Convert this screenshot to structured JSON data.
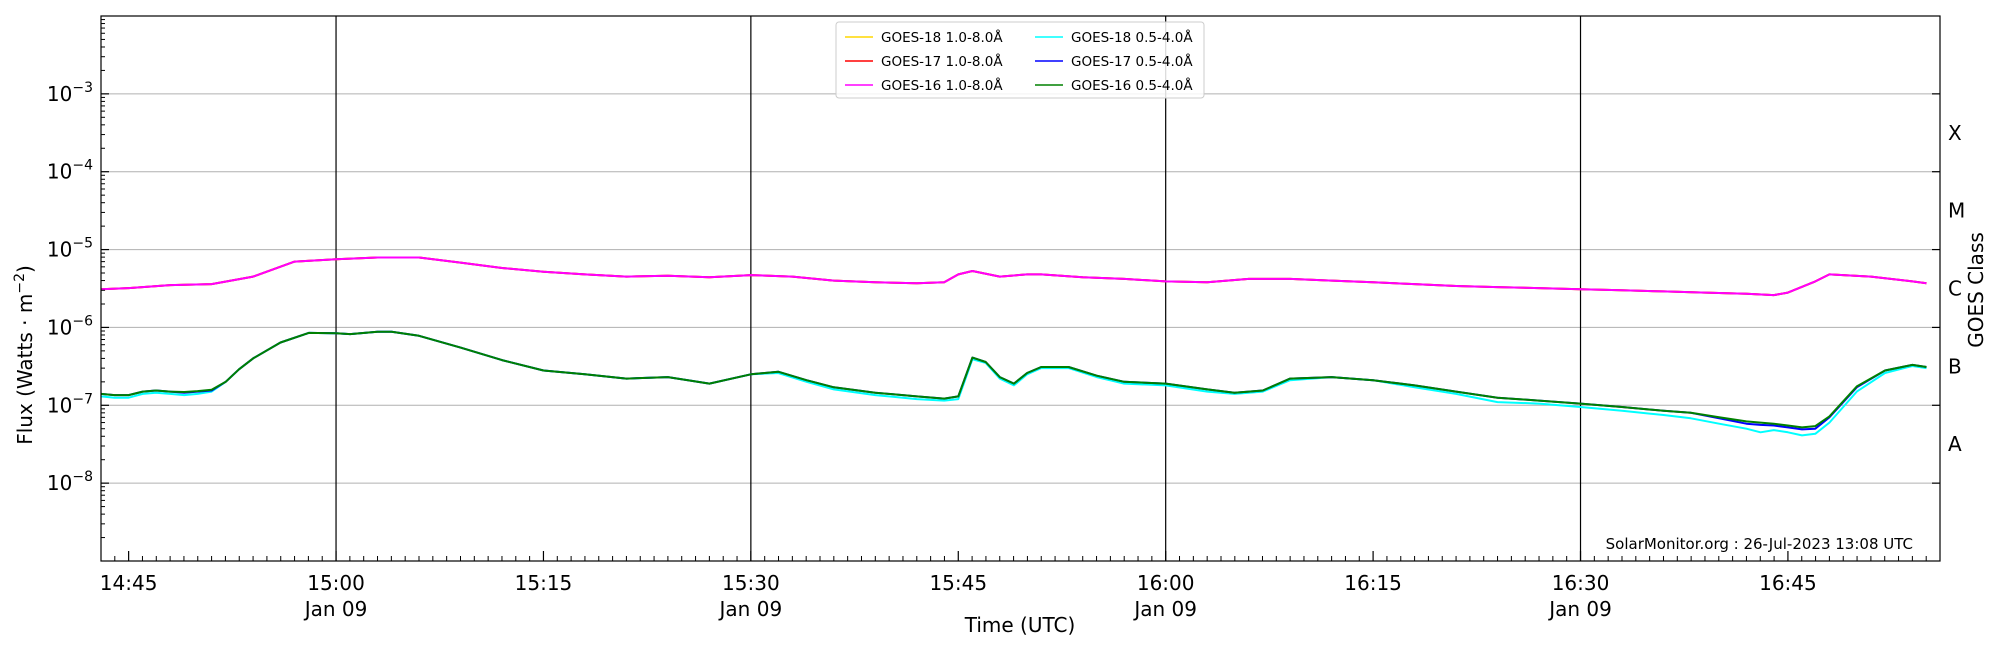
{
  "chart_data": {
    "type": "line",
    "xlabel": "Time (UTC)",
    "ylabel": "Flux (Watts · m",
    "ylabel_exp": "−2",
    "ylabel_close": ")",
    "y2label": "GOES Class",
    "credit": "SolarMonitor.org : 26-Jul-2023 13:08 UTC",
    "yscale": "log",
    "ylim": [
      1e-09,
      0.01
    ],
    "xlim": [
      14.7167,
      16.9333
    ],
    "grid": "horizontal",
    "legend_position": "top-center",
    "y_ticks": [
      {
        "value": 1e-08,
        "base": "10",
        "exp": "−8"
      },
      {
        "value": 1e-07,
        "base": "10",
        "exp": "−7"
      },
      {
        "value": 1e-06,
        "base": "10",
        "exp": "−6"
      },
      {
        "value": 1e-05,
        "base": "10",
        "exp": "−5"
      },
      {
        "value": 0.0001,
        "base": "10",
        "exp": "−4"
      },
      {
        "value": 0.001,
        "base": "10",
        "exp": "−3"
      }
    ],
    "x_ticks": [
      {
        "value": 14.75,
        "label": "14:45",
        "sub": ""
      },
      {
        "value": 15.0,
        "label": "15:00",
        "sub": "Jan 09"
      },
      {
        "value": 15.25,
        "label": "15:15",
        "sub": ""
      },
      {
        "value": 15.5,
        "label": "15:30",
        "sub": "Jan 09"
      },
      {
        "value": 15.75,
        "label": "15:45",
        "sub": ""
      },
      {
        "value": 16.0,
        "label": "16:00",
        "sub": "Jan 09"
      },
      {
        "value": 16.25,
        "label": "16:15",
        "sub": ""
      },
      {
        "value": 16.5,
        "label": "16:30",
        "sub": "Jan 09"
      },
      {
        "value": 16.75,
        "label": "16:45",
        "sub": ""
      }
    ],
    "vlines": [
      15.0,
      15.5,
      16.0,
      16.5
    ],
    "goes_classes": [
      {
        "label": "A",
        "value": 3.16e-08
      },
      {
        "label": "B",
        "value": 3.16e-07
      },
      {
        "label": "C",
        "value": 3.16e-06
      },
      {
        "label": "M",
        "value": 3.16e-05
      },
      {
        "label": "X",
        "value": 0.000316
      }
    ],
    "series": [
      {
        "name": "GOES-18 1.0-8.0Å",
        "color": "#ffd700",
        "x": [
          14.7167,
          14.75,
          14.8,
          14.85,
          14.9,
          14.95,
          15.0,
          15.05,
          15.1,
          15.15,
          15.2,
          15.25,
          15.3,
          15.35,
          15.4,
          15.45,
          15.5,
          15.55,
          15.6,
          15.65,
          15.7,
          15.733,
          15.75,
          15.767,
          15.8,
          15.833,
          15.85,
          15.9,
          15.95,
          16.0,
          16.05,
          16.1,
          16.15,
          16.2,
          16.25,
          16.3,
          16.35,
          16.4,
          16.45,
          16.5,
          16.55,
          16.6,
          16.65,
          16.7,
          16.733,
          16.75,
          16.783,
          16.8,
          16.85,
          16.9,
          16.917
        ],
        "y": [
          3.1e-06,
          3.2e-06,
          3.5e-06,
          3.6e-06,
          4.5e-06,
          7e-06,
          7.5e-06,
          7.9e-06,
          7.9e-06,
          6.8e-06,
          5.8e-06,
          5.2e-06,
          4.8e-06,
          4.5e-06,
          4.6e-06,
          4.4e-06,
          4.7e-06,
          4.5e-06,
          4e-06,
          3.8e-06,
          3.7e-06,
          3.8e-06,
          4.8e-06,
          5.3e-06,
          4.5e-06,
          4.8e-06,
          4.8e-06,
          4.4e-06,
          4.2e-06,
          3.9e-06,
          3.8e-06,
          4.2e-06,
          4.2e-06,
          4e-06,
          3.8e-06,
          3.6e-06,
          3.4e-06,
          3.3e-06,
          3.2e-06,
          3.1e-06,
          3e-06,
          2.9e-06,
          2.8e-06,
          2.7e-06,
          2.6e-06,
          2.8e-06,
          3.9e-06,
          4.8e-06,
          4.5e-06,
          3.9e-06,
          3.7e-06
        ]
      },
      {
        "name": "GOES-17 1.0-8.0Å",
        "color": "#ff0000",
        "x": [
          14.7167,
          14.75,
          14.8,
          14.85,
          14.9,
          14.95,
          15.0,
          15.05,
          15.1,
          15.15,
          15.2,
          15.25,
          15.3,
          15.35,
          15.4,
          15.45,
          15.5,
          15.55,
          15.6,
          15.65,
          15.7,
          15.733,
          15.75,
          15.767,
          15.8,
          15.833,
          15.85,
          15.9,
          15.95,
          16.0,
          16.05,
          16.1,
          16.15,
          16.2,
          16.25,
          16.3,
          16.35,
          16.4,
          16.45,
          16.5,
          16.55,
          16.6,
          16.65,
          16.7,
          16.733,
          16.75,
          16.783,
          16.8,
          16.85,
          16.9,
          16.917
        ],
        "y": [
          3.1e-06,
          3.2e-06,
          3.5e-06,
          3.6e-06,
          4.5e-06,
          7e-06,
          7.5e-06,
          7.9e-06,
          7.9e-06,
          6.8e-06,
          5.8e-06,
          5.2e-06,
          4.8e-06,
          4.5e-06,
          4.6e-06,
          4.4e-06,
          4.7e-06,
          4.5e-06,
          4e-06,
          3.8e-06,
          3.7e-06,
          3.8e-06,
          4.8e-06,
          5.3e-06,
          4.5e-06,
          4.8e-06,
          4.8e-06,
          4.4e-06,
          4.2e-06,
          3.9e-06,
          3.8e-06,
          4.2e-06,
          4.2e-06,
          4e-06,
          3.8e-06,
          3.6e-06,
          3.4e-06,
          3.3e-06,
          3.2e-06,
          3.1e-06,
          3e-06,
          2.9e-06,
          2.8e-06,
          2.7e-06,
          2.6e-06,
          2.8e-06,
          3.9e-06,
          4.8e-06,
          4.5e-06,
          3.9e-06,
          3.7e-06
        ]
      },
      {
        "name": "GOES-16 1.0-8.0Å",
        "color": "#ff00ff",
        "x": [
          14.7167,
          14.75,
          14.8,
          14.85,
          14.9,
          14.95,
          15.0,
          15.05,
          15.1,
          15.15,
          15.2,
          15.25,
          15.3,
          15.35,
          15.4,
          15.45,
          15.5,
          15.55,
          15.6,
          15.65,
          15.7,
          15.733,
          15.75,
          15.767,
          15.8,
          15.833,
          15.85,
          15.9,
          15.95,
          16.0,
          16.05,
          16.1,
          16.15,
          16.2,
          16.25,
          16.3,
          16.35,
          16.4,
          16.45,
          16.5,
          16.55,
          16.6,
          16.65,
          16.7,
          16.733,
          16.75,
          16.783,
          16.8,
          16.85,
          16.9,
          16.917
        ],
        "y": [
          3.1e-06,
          3.2e-06,
          3.5e-06,
          3.6e-06,
          4.5e-06,
          7e-06,
          7.5e-06,
          7.9e-06,
          7.9e-06,
          6.8e-06,
          5.8e-06,
          5.2e-06,
          4.8e-06,
          4.5e-06,
          4.6e-06,
          4.4e-06,
          4.7e-06,
          4.5e-06,
          4e-06,
          3.8e-06,
          3.7e-06,
          3.8e-06,
          4.8e-06,
          5.3e-06,
          4.5e-06,
          4.8e-06,
          4.8e-06,
          4.4e-06,
          4.2e-06,
          3.9e-06,
          3.8e-06,
          4.2e-06,
          4.2e-06,
          4e-06,
          3.8e-06,
          3.6e-06,
          3.4e-06,
          3.3e-06,
          3.2e-06,
          3.1e-06,
          3e-06,
          2.9e-06,
          2.8e-06,
          2.7e-06,
          2.6e-06,
          2.8e-06,
          3.9e-06,
          4.8e-06,
          4.5e-06,
          3.9e-06,
          3.7e-06
        ]
      },
      {
        "name": "GOES-18 0.5-4.0Å",
        "color": "#00ffff",
        "x": [
          14.7167,
          14.733,
          14.75,
          14.767,
          14.783,
          14.8,
          14.817,
          14.833,
          14.85,
          14.867,
          14.883,
          14.9,
          14.933,
          14.967,
          15.0,
          15.017,
          15.05,
          15.067,
          15.1,
          15.15,
          15.2,
          15.25,
          15.3,
          15.35,
          15.4,
          15.45,
          15.5,
          15.533,
          15.567,
          15.6,
          15.65,
          15.7,
          15.733,
          15.75,
          15.767,
          15.783,
          15.8,
          15.817,
          15.833,
          15.85,
          15.883,
          15.917,
          15.95,
          16.0,
          16.05,
          16.083,
          16.117,
          16.15,
          16.2,
          16.25,
          16.3,
          16.35,
          16.4,
          16.45,
          16.5,
          16.55,
          16.6,
          16.633,
          16.667,
          16.7,
          16.717,
          16.733,
          16.75,
          16.767,
          16.783,
          16.8,
          16.833,
          16.867,
          16.9,
          16.917
        ],
        "y": [
          1.3e-07,
          1.25e-07,
          1.25e-07,
          1.4e-07,
          1.45e-07,
          1.4e-07,
          1.35e-07,
          1.4e-07,
          1.5e-07,
          2e-07,
          2.9e-07,
          4e-07,
          6.4e-07,
          8.5e-07,
          8.4e-07,
          8.2e-07,
          8.8e-07,
          8.8e-07,
          7.8e-07,
          5.5e-07,
          3.8e-07,
          2.8e-07,
          2.5e-07,
          2.2e-07,
          2.3e-07,
          1.9e-07,
          2.5e-07,
          2.6e-07,
          2e-07,
          1.6e-07,
          1.35e-07,
          1.2e-07,
          1.15e-07,
          1.2e-07,
          3.9e-07,
          3.5e-07,
          2.2e-07,
          1.8e-07,
          2.5e-07,
          3e-07,
          3e-07,
          2.3e-07,
          1.9e-07,
          1.8e-07,
          1.5e-07,
          1.4e-07,
          1.5e-07,
          2.1e-07,
          2.3e-07,
          2.1e-07,
          1.7e-07,
          1.4e-07,
          1.1e-07,
          1.05e-07,
          9.5e-08,
          8.5e-08,
          7.5e-08,
          6.8e-08,
          5.8e-08,
          5e-08,
          4.5e-08,
          4.8e-08,
          4.5e-08,
          4.1e-08,
          4.3e-08,
          6e-08,
          1.5e-07,
          2.6e-07,
          3.2e-07,
          3e-07
        ]
      },
      {
        "name": "GOES-17 0.5-4.0Å",
        "color": "#0000ff",
        "x": [
          14.7167,
          14.733,
          14.75,
          14.767,
          14.783,
          14.8,
          14.817,
          14.833,
          14.85,
          14.867,
          14.883,
          14.9,
          14.933,
          14.967,
          15.0,
          15.017,
          15.05,
          15.067,
          15.1,
          15.15,
          15.2,
          15.25,
          15.3,
          15.35,
          15.4,
          15.45,
          15.5,
          15.533,
          15.567,
          15.6,
          15.65,
          15.7,
          15.733,
          15.75,
          15.767,
          15.783,
          15.8,
          15.817,
          15.833,
          15.85,
          15.883,
          15.917,
          15.95,
          16.0,
          16.05,
          16.083,
          16.117,
          16.15,
          16.2,
          16.25,
          16.3,
          16.35,
          16.4,
          16.45,
          16.5,
          16.55,
          16.6,
          16.633,
          16.667,
          16.7,
          16.717,
          16.733,
          16.75,
          16.767,
          16.783,
          16.8,
          16.833,
          16.867,
          16.9,
          16.917
        ],
        "y": [
          1.4e-07,
          1.35e-07,
          1.35e-07,
          1.5e-07,
          1.55e-07,
          1.5e-07,
          1.45e-07,
          1.5e-07,
          1.55e-07,
          2e-07,
          2.9e-07,
          4e-07,
          6.4e-07,
          8.5e-07,
          8.4e-07,
          8.2e-07,
          8.8e-07,
          8.8e-07,
          7.8e-07,
          5.5e-07,
          3.8e-07,
          2.8e-07,
          2.5e-07,
          2.2e-07,
          2.3e-07,
          1.9e-07,
          2.5e-07,
          2.7e-07,
          2.1e-07,
          1.7e-07,
          1.45e-07,
          1.3e-07,
          1.22e-07,
          1.3e-07,
          4.1e-07,
          3.6e-07,
          2.3e-07,
          1.9e-07,
          2.6e-07,
          3.1e-07,
          3.1e-07,
          2.4e-07,
          2e-07,
          1.9e-07,
          1.6e-07,
          1.45e-07,
          1.55e-07,
          2.2e-07,
          2.3e-07,
          2.1e-07,
          1.8e-07,
          1.5e-07,
          1.25e-07,
          1.15e-07,
          1.05e-07,
          9.5e-08,
          8.5e-08,
          8e-08,
          6.8e-08,
          5.8e-08,
          5.6e-08,
          5.5e-08,
          5.2e-08,
          4.9e-08,
          5e-08,
          7e-08,
          1.7e-07,
          2.8e-07,
          3.3e-07,
          3.1e-07
        ]
      },
      {
        "name": "GOES-16 0.5-4.0Å",
        "color": "#008000",
        "x": [
          14.7167,
          14.733,
          14.75,
          14.767,
          14.783,
          14.8,
          14.817,
          14.833,
          14.85,
          14.867,
          14.883,
          14.9,
          14.933,
          14.967,
          15.0,
          15.017,
          15.05,
          15.067,
          15.1,
          15.15,
          15.2,
          15.25,
          15.3,
          15.35,
          15.4,
          15.45,
          15.5,
          15.533,
          15.567,
          15.6,
          15.65,
          15.7,
          15.733,
          15.75,
          15.767,
          15.783,
          15.8,
          15.817,
          15.833,
          15.85,
          15.883,
          15.917,
          15.95,
          16.0,
          16.05,
          16.083,
          16.117,
          16.15,
          16.2,
          16.25,
          16.3,
          16.35,
          16.4,
          16.45,
          16.5,
          16.55,
          16.6,
          16.633,
          16.667,
          16.7,
          16.717,
          16.733,
          16.75,
          16.767,
          16.783,
          16.8,
          16.833,
          16.867,
          16.9,
          16.917
        ],
        "y": [
          1.4e-07,
          1.35e-07,
          1.35e-07,
          1.5e-07,
          1.55e-07,
          1.5e-07,
          1.48e-07,
          1.52e-07,
          1.58e-07,
          2e-07,
          2.9e-07,
          4e-07,
          6.4e-07,
          8.5e-07,
          8.4e-07,
          8.2e-07,
          8.8e-07,
          8.8e-07,
          7.8e-07,
          5.5e-07,
          3.8e-07,
          2.8e-07,
          2.5e-07,
          2.2e-07,
          2.3e-07,
          1.9e-07,
          2.5e-07,
          2.7e-07,
          2.1e-07,
          1.7e-07,
          1.45e-07,
          1.3e-07,
          1.22e-07,
          1.3e-07,
          4.1e-07,
          3.6e-07,
          2.3e-07,
          1.9e-07,
          2.6e-07,
          3.1e-07,
          3.1e-07,
          2.4e-07,
          2e-07,
          1.9e-07,
          1.6e-07,
          1.45e-07,
          1.55e-07,
          2.2e-07,
          2.3e-07,
          2.1e-07,
          1.8e-07,
          1.5e-07,
          1.25e-07,
          1.15e-07,
          1.05e-07,
          9.5e-08,
          8.5e-08,
          8e-08,
          7e-08,
          6.2e-08,
          6e-08,
          5.8e-08,
          5.5e-08,
          5.2e-08,
          5.4e-08,
          7.2e-08,
          1.75e-07,
          2.8e-07,
          3.3e-07,
          3.1e-07
        ]
      }
    ]
  }
}
